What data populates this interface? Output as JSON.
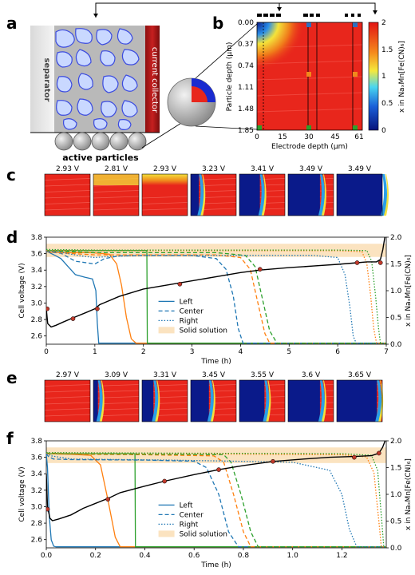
{
  "panels": {
    "a": {
      "label": "a",
      "separator_label": "separator",
      "current_collector_label": "current collector",
      "active_particles_label": "active particles"
    },
    "b": {
      "label": "b",
      "ylabel": "Particle depth (µm)",
      "xlabel": "Electrode depth (µm)",
      "yticks": [
        "0.00",
        "0.37",
        "0.74",
        "1.11",
        "1.48",
        "1.85"
      ],
      "xticks": [
        "0",
        "15",
        "30",
        "45",
        "61"
      ],
      "colorbar_ticks": [
        "0",
        "0.5",
        "1",
        "1.5",
        "2"
      ],
      "colorbar_label": "x in NaₓMn[Fe(CN)₆]"
    },
    "c": {
      "label": "c",
      "voltages": [
        "2.93 V",
        "2.81 V",
        "2.93 V",
        "3.23 V",
        "3.41 V",
        "3.49 V",
        "3.49 V"
      ]
    },
    "e": {
      "label": "e",
      "voltages": [
        "2.97 V",
        "3.09 V",
        "3.31 V",
        "3.45 V",
        "3.55 V",
        "3.6 V",
        "3.65 V"
      ]
    }
  },
  "legend": {
    "left": "Left",
    "center": "Center",
    "right": "Right",
    "solid": "Solid solution"
  },
  "colors": {
    "left": "#1f77b4",
    "center": "#ff7f0e",
    "right": "#2ca02c",
    "solid": "#fbe3c0",
    "voltage": "#000000",
    "marker": "#c0392b",
    "heat_red": "#e8261c",
    "heat_blue": "#0a1a8a"
  },
  "chart_data": [
    {
      "id": "d",
      "label": "d",
      "type": "line",
      "xlabel": "Time (h)",
      "ylabel": "Cell voltage (V)",
      "y2label": "x in NaₓMn[Fe(CN)₆]",
      "xlim": [
        0,
        7
      ],
      "ylim": [
        2.5,
        3.8
      ],
      "y2lim": [
        0,
        2.0
      ],
      "xticks": [
        "0",
        "1",
        "2",
        "3",
        "4",
        "5",
        "6",
        "7"
      ],
      "yticks": [
        "2.6",
        "2.8",
        "3.0",
        "3.2",
        "3.4",
        "3.6",
        "3.8"
      ],
      "y2ticks": [
        "0.0",
        "0.5",
        "1.0",
        "1.5",
        "2.0"
      ],
      "solid_solution_band": [
        3.56,
        3.72
      ],
      "voltage": {
        "x": [
          0,
          0.03,
          0.1,
          0.2,
          0.35,
          0.55,
          0.8,
          1.0,
          1.1,
          1.5,
          2.0,
          2.5,
          2.8,
          3.2,
          3.6,
          4.0,
          4.4,
          5.0,
          5.5,
          6.0,
          6.4,
          6.6,
          6.8,
          6.88,
          6.93,
          6.97
        ],
        "y": [
          2.93,
          2.75,
          2.71,
          2.73,
          2.77,
          2.82,
          2.88,
          2.93,
          2.98,
          3.08,
          3.17,
          3.22,
          3.25,
          3.29,
          3.33,
          3.37,
          3.4,
          3.43,
          3.45,
          3.47,
          3.49,
          3.5,
          3.5,
          3.53,
          3.65,
          3.8
        ]
      },
      "markers": {
        "x": [
          0.02,
          0.55,
          1.05,
          2.75,
          4.4,
          6.4,
          6.88
        ],
        "y": [
          2.93,
          2.81,
          2.93,
          3.23,
          3.41,
          3.49,
          3.49
        ]
      },
      "series": [
        {
          "name": "Left",
          "style": "solid",
          "color": "#1f77b4",
          "x": [
            0,
            0.05,
            0.2,
            0.3,
            0.45,
            0.6,
            0.8,
            0.95,
            1.02,
            1.05,
            1.08,
            7
          ],
          "y": [
            1.75,
            1.72,
            1.65,
            1.6,
            1.45,
            1.3,
            1.25,
            1.22,
            1.0,
            0.4,
            0.02,
            0.02
          ]
        },
        {
          "name": "Center",
          "style": "solid",
          "color": "#ff7f0e",
          "x": [
            0,
            0.1,
            0.5,
            0.9,
            1.1,
            1.3,
            1.45,
            1.55,
            1.65,
            1.75,
            1.85,
            7
          ],
          "y": [
            1.73,
            1.72,
            1.71,
            1.71,
            1.7,
            1.68,
            1.5,
            1.1,
            0.5,
            0.1,
            0.02,
            0.02
          ]
        },
        {
          "name": "Right",
          "style": "solid",
          "color": "#2ca02c",
          "x": [
            0,
            2.07,
            2.08,
            7
          ],
          "y": [
            1.75,
            1.75,
            0.02,
            0.02
          ]
        },
        {
          "name": "Left",
          "style": "dashed",
          "color": "#1f77b4",
          "x": [
            0,
            0.3,
            0.6,
            1.0,
            1.2,
            1.5,
            2.0,
            3.0,
            3.5,
            3.7,
            3.85,
            3.95,
            4.05,
            7
          ],
          "y": [
            1.73,
            1.7,
            1.55,
            1.5,
            1.6,
            1.65,
            1.66,
            1.66,
            1.6,
            1.4,
            0.9,
            0.3,
            0.02,
            0.02
          ]
        },
        {
          "name": "Center",
          "style": "dashed",
          "color": "#ff7f0e",
          "x": [
            0,
            0.4,
            1.0,
            2.0,
            3.5,
            4.0,
            4.2,
            4.35,
            4.5,
            4.6,
            7
          ],
          "y": [
            1.74,
            1.7,
            1.67,
            1.67,
            1.67,
            1.62,
            1.4,
            0.8,
            0.2,
            0.02,
            0.02
          ]
        },
        {
          "name": "Right",
          "style": "dashed",
          "color": "#2ca02c",
          "x": [
            0,
            0.5,
            1.0,
            2.0,
            3.5,
            4.1,
            4.3,
            4.45,
            4.6,
            4.75,
            7
          ],
          "y": [
            1.75,
            1.73,
            1.71,
            1.71,
            1.71,
            1.66,
            1.45,
            0.85,
            0.25,
            0.02,
            0.02
          ]
        },
        {
          "name": "Left",
          "style": "dotted",
          "color": "#1f77b4",
          "x": [
            0,
            0.3,
            0.7,
            1.0,
            1.3,
            2.0,
            4.0,
            5.5,
            6.0,
            6.15,
            6.25,
            6.32,
            6.38,
            7
          ],
          "y": [
            1.75,
            1.72,
            1.65,
            1.62,
            1.64,
            1.66,
            1.66,
            1.66,
            1.62,
            1.3,
            0.7,
            0.15,
            0.02,
            0.02
          ]
        },
        {
          "name": "Center",
          "style": "dotted",
          "color": "#ff7f0e",
          "x": [
            0,
            1.0,
            3.0,
            6.0,
            6.5,
            6.6,
            6.68,
            6.74,
            6.8,
            7
          ],
          "y": [
            1.76,
            1.75,
            1.75,
            1.75,
            1.73,
            1.5,
            0.9,
            0.3,
            0.02,
            0.02
          ]
        },
        {
          "name": "Right",
          "style": "dotted",
          "color": "#2ca02c",
          "x": [
            0,
            1.0,
            3.0,
            6.0,
            6.6,
            6.7,
            6.78,
            6.84,
            6.88,
            7
          ],
          "y": [
            1.77,
            1.76,
            1.76,
            1.76,
            1.75,
            1.55,
            0.9,
            0.3,
            0.02,
            0.02
          ]
        }
      ]
    },
    {
      "id": "f",
      "label": "f",
      "type": "line",
      "xlabel": "Time (h)",
      "ylabel": "Cell voltage (V)",
      "y2label": "x in NaₓMn[Fe(CN)₆]",
      "xlim": [
        0,
        1.38
      ],
      "ylim": [
        2.5,
        3.8
      ],
      "y2lim": [
        0,
        2.0
      ],
      "xticks": [
        "0.0",
        "0.2",
        "0.4",
        "0.6",
        "0.8",
        "1.0",
        "1.2"
      ],
      "yticks": [
        "2.6",
        "2.8",
        "3.0",
        "3.2",
        "3.4",
        "3.6",
        "3.8"
      ],
      "y2ticks": [
        "0.0",
        "0.5",
        "1.0",
        "1.5",
        "2.0"
      ],
      "solid_solution_band": [
        3.53,
        3.72
      ],
      "voltage": {
        "x": [
          0,
          0.005,
          0.015,
          0.025,
          0.05,
          0.1,
          0.15,
          0.2,
          0.25,
          0.3,
          0.4,
          0.48,
          0.6,
          0.7,
          0.8,
          0.92,
          1.05,
          1.15,
          1.25,
          1.32,
          1.35,
          1.365,
          1.375
        ],
        "y": [
          3.4,
          3.0,
          2.86,
          2.83,
          2.85,
          2.9,
          2.98,
          3.04,
          3.1,
          3.17,
          3.25,
          3.31,
          3.39,
          3.45,
          3.5,
          3.55,
          3.58,
          3.6,
          3.61,
          3.62,
          3.65,
          3.72,
          3.8
        ]
      },
      "markers": {
        "x": [
          0.005,
          0.25,
          0.48,
          0.7,
          0.92,
          1.25,
          1.35
        ],
        "y": [
          2.97,
          3.09,
          3.31,
          3.45,
          3.55,
          3.6,
          3.65
        ]
      },
      "series": [
        {
          "name": "Left",
          "style": "solid",
          "color": "#1f77b4",
          "x": [
            0,
            0.005,
            0.012,
            0.02,
            0.03,
            0.04,
            1.38
          ],
          "y": [
            1.75,
            1.5,
            0.6,
            0.15,
            0.03,
            0.02,
            0.02
          ]
        },
        {
          "name": "Center",
          "style": "solid",
          "color": "#ff7f0e",
          "x": [
            0,
            0.1,
            0.18,
            0.22,
            0.25,
            0.28,
            0.3,
            1.38
          ],
          "y": [
            1.76,
            1.75,
            1.73,
            1.55,
            0.9,
            0.2,
            0.02,
            0.02
          ]
        },
        {
          "name": "Right",
          "style": "solid",
          "color": "#2ca02c",
          "x": [
            0,
            0.36,
            0.362,
            1.38
          ],
          "y": [
            1.76,
            1.76,
            0.02,
            0.02
          ]
        },
        {
          "name": "Left",
          "style": "dashed",
          "color": "#1f77b4",
          "x": [
            0,
            0.01,
            0.03,
            0.1,
            0.4,
            0.6,
            0.65,
            0.7,
            0.74,
            0.78,
            1.38
          ],
          "y": [
            1.76,
            1.7,
            1.66,
            1.65,
            1.64,
            1.62,
            1.5,
            1.0,
            0.3,
            0.02,
            0.02
          ]
        },
        {
          "name": "Center",
          "style": "dashed",
          "color": "#ff7f0e",
          "x": [
            0,
            0.1,
            0.4,
            0.68,
            0.72,
            0.76,
            0.8,
            0.83,
            1.38
          ],
          "y": [
            1.76,
            1.75,
            1.74,
            1.72,
            1.6,
            1.0,
            0.3,
            0.02,
            0.02
          ]
        },
        {
          "name": "Right",
          "style": "dashed",
          "color": "#2ca02c",
          "x": [
            0,
            0.1,
            0.4,
            0.72,
            0.75,
            0.79,
            0.83,
            0.86,
            1.38
          ],
          "y": [
            1.77,
            1.76,
            1.75,
            1.74,
            1.6,
            1.0,
            0.3,
            0.02,
            0.02
          ]
        },
        {
          "name": "Left",
          "style": "dotted",
          "color": "#1f77b4",
          "x": [
            0,
            0.02,
            0.1,
            0.5,
            1.0,
            1.15,
            1.2,
            1.23,
            1.26,
            1.38
          ],
          "y": [
            1.76,
            1.72,
            1.66,
            1.64,
            1.6,
            1.45,
            1.0,
            0.35,
            0.02,
            0.02
          ]
        },
        {
          "name": "Center",
          "style": "dotted",
          "color": "#ff7f0e",
          "x": [
            0,
            0.5,
            1.2,
            1.3,
            1.33,
            1.35,
            1.36,
            1.38
          ],
          "y": [
            1.77,
            1.76,
            1.74,
            1.7,
            1.4,
            0.5,
            0.02,
            0.02
          ]
        },
        {
          "name": "Right",
          "style": "dotted",
          "color": "#2ca02c",
          "x": [
            0,
            0.5,
            1.2,
            1.32,
            1.345,
            1.36,
            1.37,
            1.38
          ],
          "y": [
            1.78,
            1.77,
            1.76,
            1.73,
            1.45,
            0.6,
            0.02,
            0.02
          ]
        }
      ]
    }
  ]
}
